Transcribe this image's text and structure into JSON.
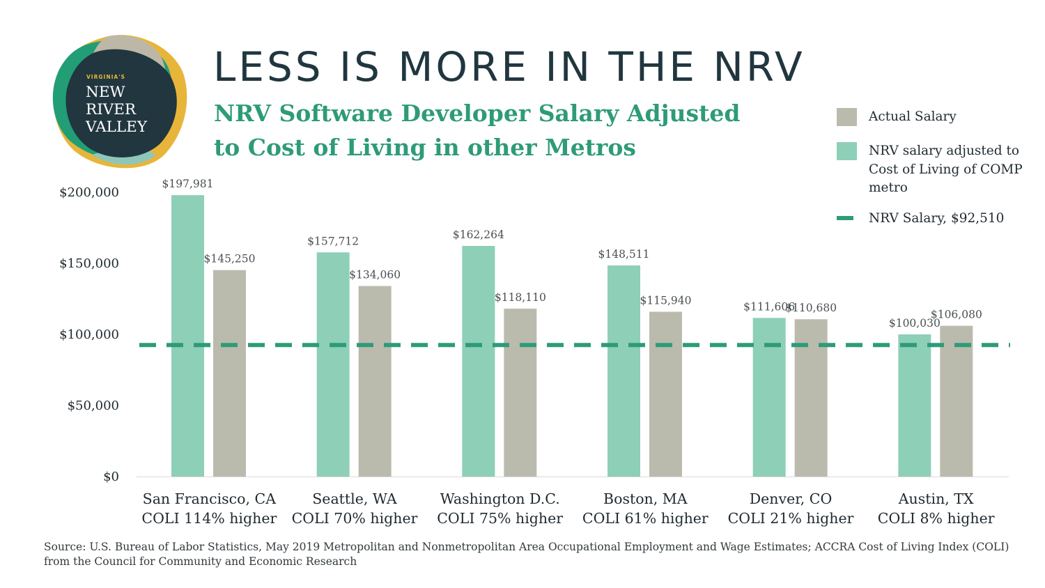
{
  "logo": {
    "kicker": "VIRGINIA'S",
    "lines": [
      "NEW",
      "RIVER",
      "VALLEY"
    ]
  },
  "title": "LESS IS MORE IN THE NRV",
  "subtitle": "NRV Software Developer Salary Adjusted to Cost of Living in other Metros",
  "legend": {
    "actual": "Actual Salary",
    "adjusted": "NRV salary adjusted to Cost of Living of COMP metro",
    "nrv": "NRV Salary, $92,510"
  },
  "colors": {
    "adjusted": "#8ecfb8",
    "actual": "#bbbbad",
    "nrv_line": "#2e9b78",
    "title": "#21363f",
    "subtitle": "#2e9b78"
  },
  "chart_data": {
    "type": "bar",
    "categories": [
      [
        "San Francisco, CA",
        "COLI 114% higher"
      ],
      [
        "Seattle, WA",
        "COLI 70% higher"
      ],
      [
        "Washington D.C.",
        "COLI 75% higher"
      ],
      [
        "Boston, MA",
        "COLI 61% higher"
      ],
      [
        "Denver, CO",
        "COLI 21% higher"
      ],
      [
        "Austin, TX",
        "COLI 8% higher"
      ]
    ],
    "series": [
      {
        "name": "NRV salary adjusted to Cost of Living of COMP metro",
        "values": [
          197981,
          157712,
          162264,
          148511,
          111606,
          100030
        ],
        "labels": [
          "$197,981",
          "$157,712",
          "$162,264",
          "$148,511",
          "$111,606",
          "$100,030"
        ]
      },
      {
        "name": "Actual Salary",
        "values": [
          145250,
          134060,
          118110,
          115940,
          110680,
          106080
        ],
        "labels": [
          "$145,250",
          "$134,060",
          "$118,110",
          "$115,940",
          "$110,680",
          "$106,080"
        ]
      }
    ],
    "reference_line": {
      "name": "NRV Salary, $92,510",
      "value": 92510
    },
    "yticks": [
      0,
      50000,
      100000,
      150000,
      200000
    ],
    "ytick_labels": [
      "$0",
      "$50,000",
      "$100,000",
      "$150,000",
      "$200,000"
    ],
    "ylim": [
      0,
      200000
    ],
    "legend_position": "top-right",
    "grid": false
  },
  "source": "Source: U.S. Bureau of Labor Statistics, May 2019 Metropolitan and Nonmetropolitan Area Occupational Employment and Wage Estimates; ACCRA Cost of Living Index (COLI) from the Council for Community and Economic Research"
}
